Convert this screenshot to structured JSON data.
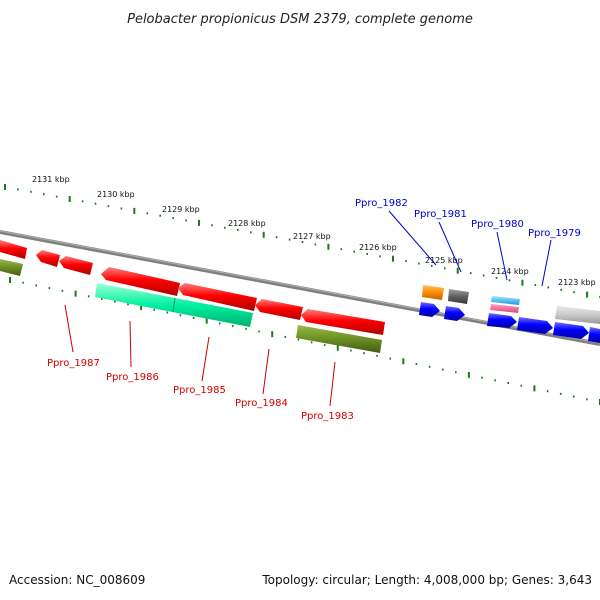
{
  "title": "Pelobacter propionicus DSM 2379, complete genome",
  "footer": {
    "accession": "Accession: NC_008609",
    "topology": "Topology: circular; Length: 4,008,000 bp; Genes: 3,643"
  },
  "scale_labels": [
    {
      "text": "2131 kbp"
    },
    {
      "text": "2130 kbp"
    },
    {
      "text": "2129 kbp"
    },
    {
      "text": "2128 kbp"
    },
    {
      "text": "2127 kbp"
    },
    {
      "text": "2126 kbp"
    },
    {
      "text": "2125 kbp"
    },
    {
      "text": "2124 kbp"
    },
    {
      "text": "2123 kbp"
    }
  ],
  "gene_labels_reverse": [
    {
      "text": "Ppro_1987"
    },
    {
      "text": "Ppro_1986"
    },
    {
      "text": "Ppro_1985"
    },
    {
      "text": "Ppro_1984"
    },
    {
      "text": "Ppro_1983"
    }
  ],
  "gene_labels_forward": [
    {
      "text": "Ppro_1982"
    },
    {
      "text": "Ppro_1981"
    },
    {
      "text": "Ppro_1980"
    },
    {
      "text": "Ppro_1979"
    }
  ],
  "colors": {
    "reverse_strand": "#ff0000",
    "forward_strand": "#0000ff",
    "reverse_label": "#d00000",
    "forward_label": "#0000cc",
    "tick": "#1a7a1a",
    "backbone": "#808080",
    "rna": "#00f0a0",
    "olive": "#6b8e23",
    "orange": "#ff8c00",
    "gray_feature": "#606060",
    "cyan": "#33ccff",
    "pink": "#ff6699",
    "light_gray": "#c8c8c8"
  }
}
